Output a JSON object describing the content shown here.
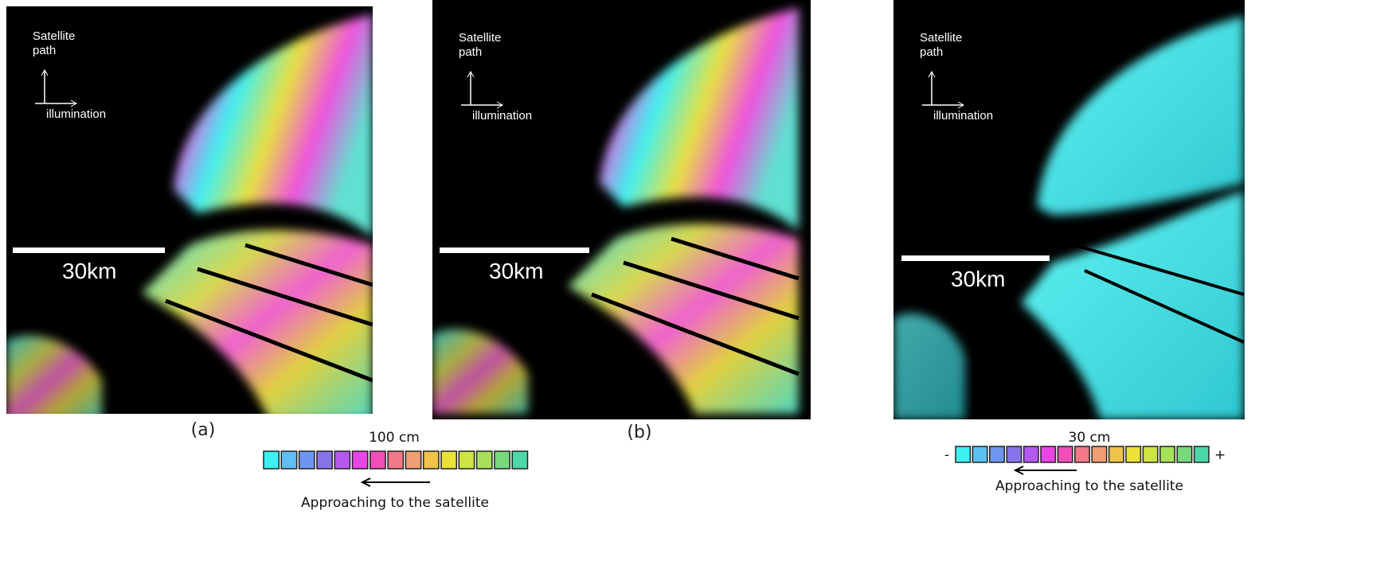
{
  "panels": [
    {
      "label": "(a)",
      "direction_lines": [
        "Satellite",
        "path"
      ],
      "illumination": "illumination",
      "scale": "30km"
    },
    {
      "label": "(b)",
      "direction_lines": [
        "Satellite",
        "path"
      ],
      "illumination": "illumination",
      "scale": "30km"
    },
    {
      "direction_lines": [
        "Satellite",
        "path"
      ],
      "illumination": "illumination",
      "scale": "30km"
    }
  ],
  "colorbars": [
    {
      "title": "100 cm",
      "caption": "Approaching to the satellite"
    },
    {
      "title": "30 cm",
      "caption": "Approaching to the satellite",
      "minus": "-",
      "plus": "+"
    }
  ],
  "colorbar_colors": [
    "#3ff0f0",
    "#5cc0f2",
    "#6e95f0",
    "#8772ea",
    "#b458ee",
    "#e844e6",
    "#f04eb8",
    "#f07a88",
    "#f09e72",
    "#f0c24a",
    "#ece236",
    "#cde444",
    "#a6e05a",
    "#78d97a",
    "#4cd8a8"
  ]
}
